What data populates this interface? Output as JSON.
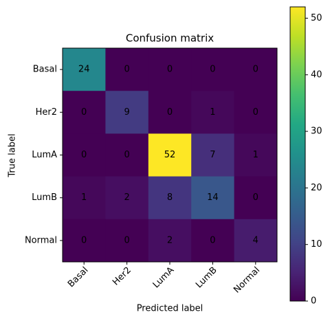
{
  "chart_data": {
    "type": "heatmap",
    "title": "Confusion matrix",
    "xlabel": "Predicted label",
    "ylabel": "True label",
    "x_categories": [
      "Basal",
      "Her2",
      "LumA",
      "LumB",
      "Normal"
    ],
    "y_categories": [
      "Basal",
      "Her2",
      "LumA",
      "LumB",
      "Normal"
    ],
    "values": [
      [
        24,
        0,
        0,
        0,
        0
      ],
      [
        0,
        9,
        0,
        1,
        0
      ],
      [
        0,
        0,
        52,
        7,
        1
      ],
      [
        1,
        2,
        8,
        14,
        0
      ],
      [
        0,
        0,
        2,
        0,
        4
      ]
    ],
    "colormap": "viridis",
    "zlim": [
      0,
      52
    ],
    "zticks": [
      0,
      10,
      20,
      30,
      40,
      50
    ]
  }
}
